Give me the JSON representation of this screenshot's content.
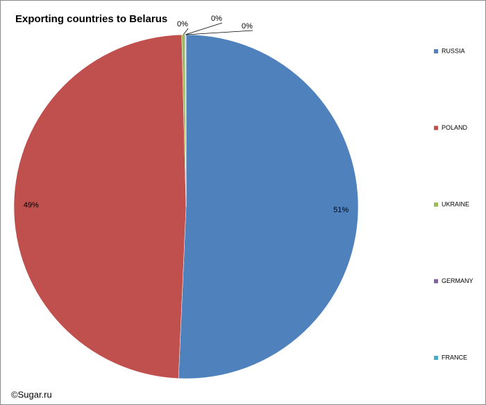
{
  "chart_data": {
    "type": "pie",
    "title": "Exporting countries to Belarus",
    "categories": [
      "RUSSIA",
      "POLAND",
      "UKRAINE",
      "GERMANY",
      "FRANCE"
    ],
    "values": [
      50.7,
      48.9,
      0.3,
      0.05,
      0.05
    ],
    "value_labels": [
      "51%",
      "49%",
      "0%",
      "0%",
      "0%"
    ],
    "colors": [
      "#4f81bd",
      "#c0504d",
      "#9bbb59",
      "#8064a2",
      "#4bacc6"
    ],
    "legend": "right",
    "footer": "©Sugar.ru"
  }
}
